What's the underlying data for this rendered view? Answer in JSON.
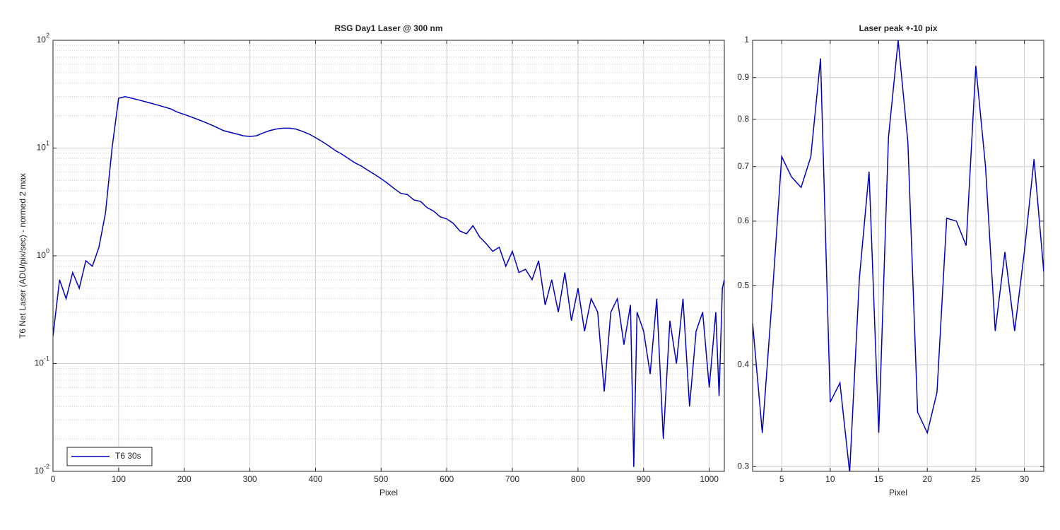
{
  "chart_data": [
    {
      "type": "line",
      "title": "RSG  Day1 Laser @ 300 nm",
      "xlabel": "Pixel",
      "ylabel": "T6 Net Laser (ADU/pix/sec) - normed 2 max",
      "log_y": true,
      "grid": true,
      "minor_grid": true,
      "legend": "lower left",
      "xlim": [
        0,
        1023
      ],
      "xticks": [
        0,
        100,
        200,
        300,
        400,
        500,
        600,
        700,
        800,
        900,
        1000
      ],
      "ylim": [
        0.01,
        100
      ],
      "yticks": [
        {
          "value": 0.01,
          "label": "10^-2"
        },
        {
          "value": 0.1,
          "label": "10^-1"
        },
        {
          "value": 1,
          "label": "10^0"
        },
        {
          "value": 10,
          "label": "10^1"
        },
        {
          "value": 100,
          "label": "10^2"
        }
      ],
      "series": [
        {
          "name": "T6 30s",
          "color": "#0000c0",
          "x": [
            0,
            10,
            20,
            30,
            40,
            50,
            60,
            70,
            80,
            90,
            100,
            110,
            120,
            130,
            140,
            150,
            160,
            170,
            180,
            190,
            200,
            210,
            220,
            230,
            240,
            250,
            260,
            270,
            280,
            290,
            300,
            310,
            320,
            330,
            340,
            350,
            360,
            370,
            380,
            390,
            400,
            410,
            420,
            430,
            440,
            450,
            460,
            470,
            480,
            490,
            500,
            510,
            520,
            530,
            540,
            550,
            560,
            570,
            580,
            590,
            600,
            610,
            620,
            630,
            640,
            650,
            660,
            670,
            680,
            690,
            700,
            710,
            720,
            730,
            740,
            750,
            760,
            770,
            780,
            790,
            800,
            810,
            820,
            830,
            840,
            850,
            860,
            870,
            880,
            885,
            890,
            900,
            910,
            920,
            930,
            940,
            950,
            960,
            970,
            980,
            990,
            1000,
            1010,
            1015,
            1020,
            1023
          ],
          "values": [
            0.18,
            0.6,
            0.4,
            0.7,
            0.5,
            0.9,
            0.8,
            1.2,
            2.5,
            10,
            29,
            30,
            29,
            28,
            27,
            26,
            25,
            24,
            23,
            21.5,
            20.5,
            19.5,
            18.5,
            17.5,
            16.5,
            15.5,
            14.5,
            14,
            13.5,
            13,
            12.8,
            13,
            13.8,
            14.5,
            15,
            15.3,
            15.3,
            15,
            14.3,
            13.5,
            12.5,
            11.5,
            10.5,
            9.5,
            8.8,
            8,
            7.3,
            6.8,
            6.2,
            5.7,
            5.2,
            4.7,
            4.2,
            3.8,
            3.7,
            3.3,
            3.2,
            2.8,
            2.6,
            2.3,
            2.2,
            2,
            1.7,
            1.6,
            1.9,
            1.5,
            1.3,
            1.1,
            1.2,
            0.8,
            1.1,
            0.7,
            0.75,
            0.6,
            0.9,
            0.35,
            0.6,
            0.3,
            0.7,
            0.25,
            0.5,
            0.2,
            0.4,
            0.3,
            0.055,
            0.3,
            0.4,
            0.15,
            0.35,
            0.011,
            0.3,
            0.2,
            0.08,
            0.4,
            0.02,
            0.25,
            0.1,
            0.4,
            0.04,
            0.2,
            0.3,
            0.06,
            0.3,
            0.05,
            0.5,
            0.6
          ]
        }
      ]
    },
    {
      "type": "line",
      "title": "Laser peak +-10 pix",
      "xlabel": "Pixel",
      "log_y": true,
      "grid": true,
      "minor_grid": true,
      "xlim": [
        2,
        32
      ],
      "xticks": [
        5,
        10,
        15,
        20,
        25,
        30
      ],
      "ylim": [
        0.296,
        1
      ],
      "yticks": [
        0.3,
        0.4,
        0.5,
        0.6,
        0.7,
        0.8,
        0.9,
        1
      ],
      "series": [
        {
          "color": "#0000c0",
          "x": [
            2,
            3,
            4,
            5,
            6,
            7,
            8,
            9,
            10,
            11,
            12,
            13,
            14,
            15,
            16,
            17,
            18,
            19,
            20,
            21,
            22,
            23,
            24,
            25,
            26,
            27,
            28,
            29,
            30,
            31,
            32
          ],
          "values": [
            0.45,
            0.33,
            0.48,
            0.72,
            0.68,
            0.66,
            0.72,
            0.95,
            0.36,
            0.38,
            0.295,
            0.51,
            0.69,
            0.33,
            0.76,
            1.0,
            0.75,
            0.35,
            0.33,
            0.37,
            0.605,
            0.6,
            0.56,
            0.93,
            0.7,
            0.44,
            0.55,
            0.44,
            0.55,
            0.715,
            0.52
          ]
        }
      ]
    }
  ]
}
